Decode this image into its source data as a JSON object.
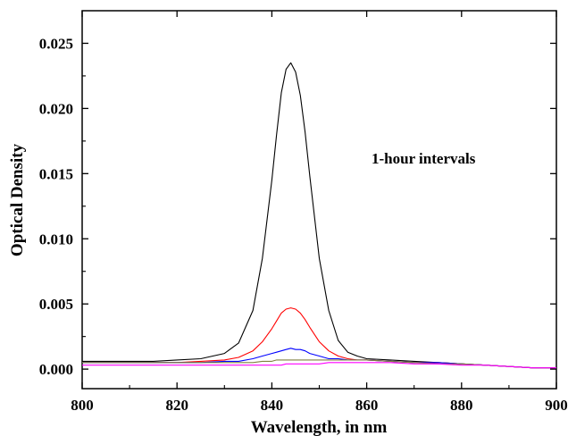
{
  "chart_data": {
    "type": "line",
    "title": "",
    "xlabel": "Wavelength, in nm",
    "ylabel": "Optical Density",
    "xlim": [
      800,
      900
    ],
    "ylim": [
      -0.0015,
      0.0275
    ],
    "x_ticks": [
      800,
      820,
      840,
      860,
      880,
      900
    ],
    "x_tick_labels": [
      "800",
      "820",
      "840",
      "860",
      "880",
      "900"
    ],
    "y_ticks": [
      0.0,
      0.005,
      0.01,
      0.015,
      0.02,
      0.025
    ],
    "y_tick_labels": [
      "0.000",
      "0.005",
      "0.010",
      "0.015",
      "0.020",
      "0.025"
    ],
    "annotation": "1-hour intervals",
    "grid": false,
    "legend": "none",
    "x": [
      800,
      805,
      810,
      815,
      820,
      825,
      830,
      833,
      836,
      838,
      840,
      841,
      842,
      843,
      844,
      845,
      846,
      847,
      848,
      850,
      852,
      854,
      856,
      858,
      860,
      865,
      870,
      875,
      880,
      885,
      890,
      895,
      900
    ],
    "series": [
      {
        "color": "#000000",
        "values": [
          0.0006,
          0.0006,
          0.0006,
          0.0006,
          0.0007,
          0.0008,
          0.0012,
          0.002,
          0.0045,
          0.0085,
          0.0145,
          0.018,
          0.0212,
          0.023,
          0.0235,
          0.0228,
          0.021,
          0.0182,
          0.0148,
          0.0085,
          0.0045,
          0.0022,
          0.0013,
          0.001,
          0.0008,
          0.0007,
          0.0006,
          0.0005,
          0.0004,
          0.0003,
          0.0002,
          0.0001,
          0.0001
        ]
      },
      {
        "color": "#ff0000",
        "values": [
          0.0005,
          0.0005,
          0.0005,
          0.0005,
          0.0005,
          0.0006,
          0.0007,
          0.0009,
          0.0014,
          0.0021,
          0.0031,
          0.0037,
          0.0043,
          0.0046,
          0.0047,
          0.0046,
          0.0043,
          0.0038,
          0.0032,
          0.0021,
          0.0014,
          0.001,
          0.0008,
          0.0007,
          0.0007,
          0.0006,
          0.0005,
          0.0005,
          0.0004,
          0.0003,
          0.0002,
          0.0001,
          0.0001
        ]
      },
      {
        "color": "#0000ff",
        "values": [
          0.0005,
          0.0005,
          0.0005,
          0.0005,
          0.0005,
          0.0005,
          0.0006,
          0.0006,
          0.0008,
          0.001,
          0.0012,
          0.0013,
          0.0014,
          0.0015,
          0.0016,
          0.0015,
          0.0015,
          0.0014,
          0.0012,
          0.001,
          0.0008,
          0.0008,
          0.0007,
          0.0007,
          0.0007,
          0.0006,
          0.0005,
          0.0005,
          0.0004,
          0.0003,
          0.0002,
          0.0001,
          0.0001
        ]
      },
      {
        "color": "#808040",
        "values": [
          0.0005,
          0.0005,
          0.0005,
          0.0005,
          0.0005,
          0.0005,
          0.0005,
          0.0005,
          0.0005,
          0.0006,
          0.0006,
          0.0007,
          0.0007,
          0.0007,
          0.0007,
          0.0007,
          0.0007,
          0.0007,
          0.0007,
          0.0007,
          0.0007,
          0.0007,
          0.0007,
          0.0007,
          0.0007,
          0.0006,
          0.0005,
          0.0004,
          0.0004,
          0.0003,
          0.0002,
          0.0001,
          0.0001
        ]
      },
      {
        "color": "#ff00ff",
        "values": [
          0.0003,
          0.0003,
          0.0003,
          0.0003,
          0.0003,
          0.0003,
          0.0003,
          0.0003,
          0.0003,
          0.0003,
          0.0003,
          0.0003,
          0.0003,
          0.0004,
          0.0004,
          0.0004,
          0.0004,
          0.0004,
          0.0004,
          0.0004,
          0.0005,
          0.0005,
          0.0005,
          0.0005,
          0.0005,
          0.0005,
          0.0004,
          0.0004,
          0.0003,
          0.0003,
          0.0002,
          0.0001,
          0.0001
        ]
      }
    ]
  }
}
